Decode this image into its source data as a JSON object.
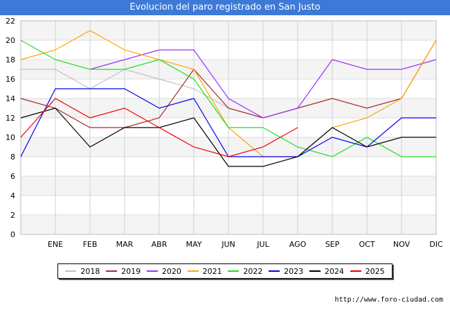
{
  "chart_data": {
    "type": "line",
    "title": "Evolucion del paro registrado en San Justo",
    "categories": [
      "",
      "ENE",
      "FEB",
      "MAR",
      "ABR",
      "MAY",
      "JUN",
      "JUL",
      "AGO",
      "SEP",
      "OCT",
      "NOV",
      "DIC"
    ],
    "ylim": [
      0,
      22
    ],
    "yticks": [
      0,
      2,
      4,
      6,
      8,
      10,
      12,
      14,
      16,
      18,
      20,
      22
    ],
    "grid": true,
    "legend_position": "bottom",
    "series": [
      {
        "name": "2018",
        "color": "#c0c0c0",
        "values": [
          17,
          17,
          15,
          17,
          16,
          15,
          13,
          12,
          13,
          null,
          null,
          null,
          null
        ]
      },
      {
        "name": "2019",
        "color": "#a52a2a",
        "values": [
          14,
          13,
          11,
          11,
          12,
          17,
          13,
          12,
          13,
          14,
          13,
          14,
          20
        ]
      },
      {
        "name": "2020",
        "color": "#9b30ff",
        "values": [
          null,
          null,
          17,
          18,
          19,
          19,
          14,
          12,
          13,
          18,
          17,
          17,
          18
        ]
      },
      {
        "name": "2021",
        "color": "#ffa500",
        "values": [
          18,
          19,
          21,
          19,
          18,
          17,
          11,
          8,
          8,
          11,
          12,
          14,
          20
        ]
      },
      {
        "name": "2022",
        "color": "#22dd22",
        "values": [
          20,
          18,
          17,
          17,
          18,
          16,
          11,
          11,
          9,
          8,
          10,
          8,
          8
        ]
      },
      {
        "name": "2023",
        "color": "#0000ee",
        "values": [
          8,
          15,
          15,
          15,
          13,
          14,
          8,
          8,
          8,
          10,
          9,
          12,
          12
        ]
      },
      {
        "name": "2024",
        "color": "#000000",
        "values": [
          12,
          13,
          9,
          11,
          11,
          12,
          7,
          7,
          8,
          11,
          9,
          10,
          10
        ]
      },
      {
        "name": "2025",
        "color": "#ee0000",
        "values": [
          10,
          14,
          12,
          13,
          11,
          9,
          8,
          9,
          11,
          null,
          null,
          null,
          null
        ]
      }
    ]
  },
  "footer": {
    "source": "http://www.foro-ciudad.com"
  }
}
